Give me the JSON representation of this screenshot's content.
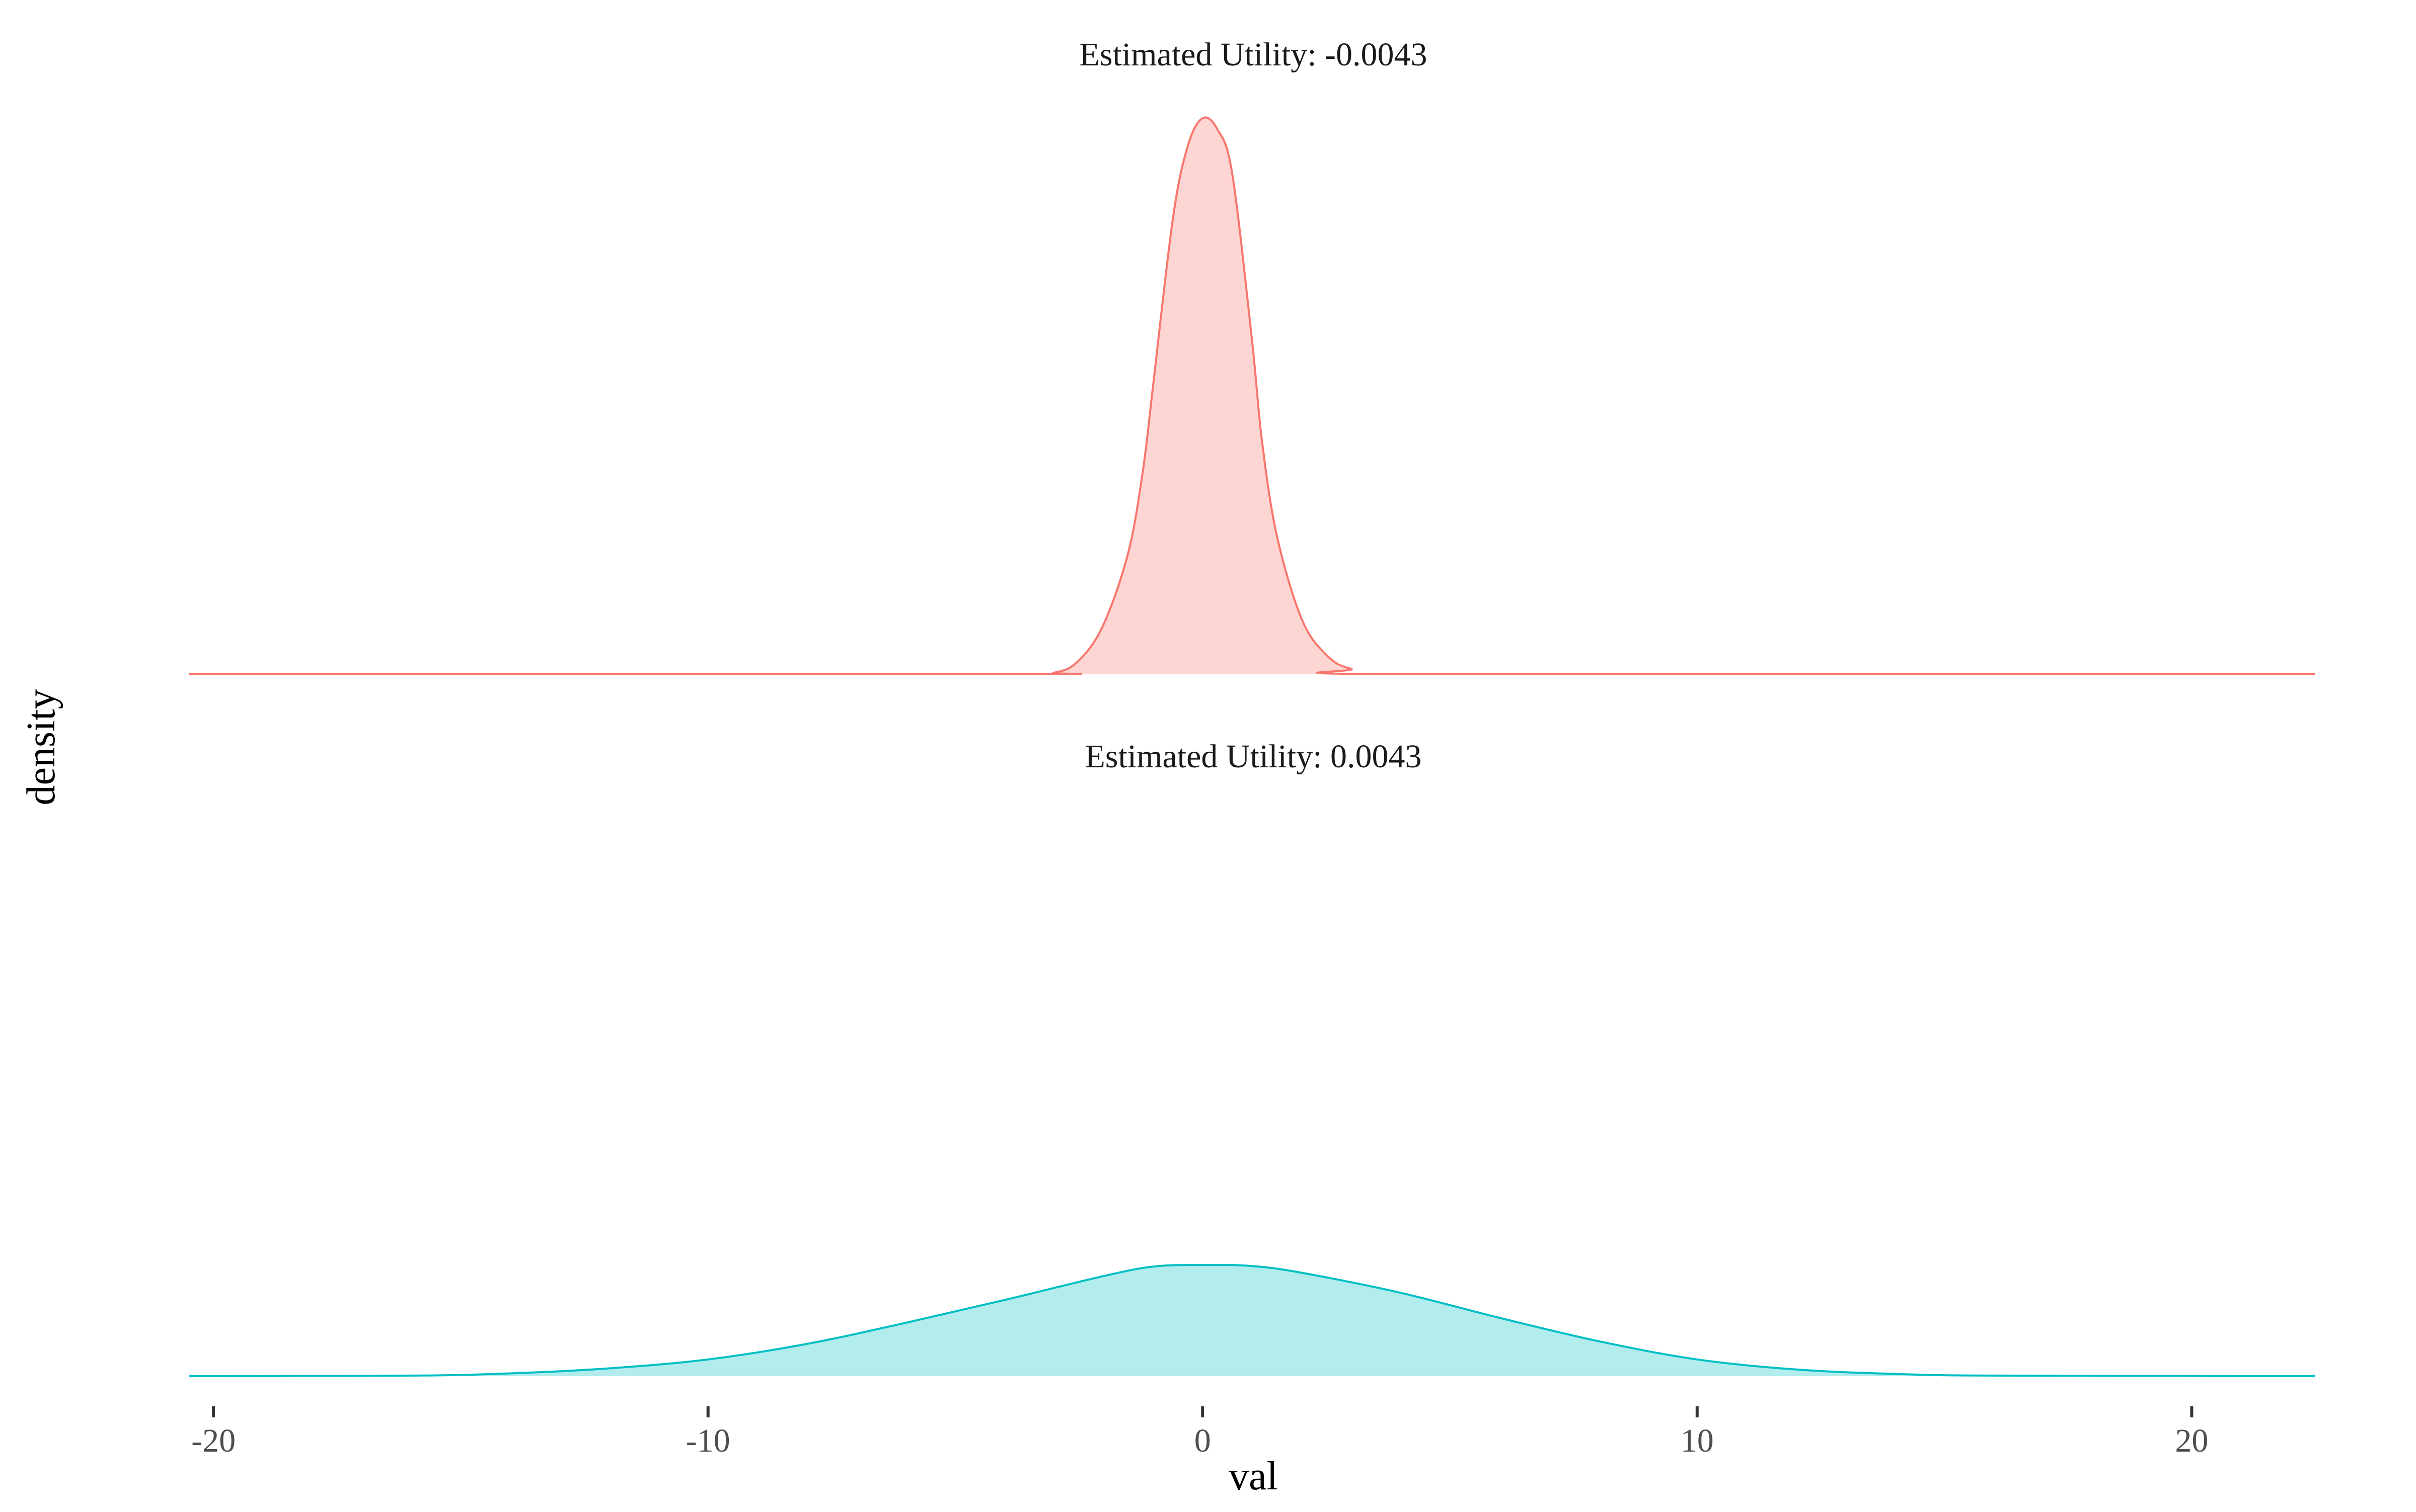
{
  "chart_data": {
    "type": "area",
    "chart_kind": "faceted density plot",
    "xlabel": "val",
    "ylabel": "density",
    "xlim": [
      -20.5,
      22.5
    ],
    "x_ticks": [
      {
        "value": -20,
        "label": "-20"
      },
      {
        "value": -10,
        "label": "-10"
      },
      {
        "value": 0,
        "label": "0"
      },
      {
        "value": 10,
        "label": "10"
      },
      {
        "value": 20,
        "label": "20"
      }
    ],
    "y_ticks_shown": false,
    "grid": false,
    "legend": "none",
    "facets": [
      {
        "title": "Estimated Utility: -0.0043",
        "line_color": "#F8766D",
        "fill_color": "#FDD5D3",
        "x": [
          -20.5,
          -4,
          -3,
          -2.5,
          -2,
          -1.5,
          -1.2,
          -1,
          -0.6,
          -0.3,
          0,
          0.3,
          0.6,
          1,
          1.2,
          1.5,
          2,
          2.5,
          3,
          4,
          22.5
        ],
        "y": [
          0,
          0,
          0.003,
          0.025,
          0.09,
          0.22,
          0.37,
          0.52,
          0.82,
          0.95,
          1.0,
          0.98,
          0.9,
          0.6,
          0.42,
          0.25,
          0.1,
          0.035,
          0.01,
          0,
          0
        ]
      },
      {
        "title": "Estimated Utility: 0.0043",
        "line_color": "#00BFC4",
        "fill_color": "#B2ECEC",
        "x": [
          -20.5,
          -16,
          -14,
          -12,
          -10,
          -8,
          -6,
          -4,
          -2,
          -1,
          0,
          1,
          2,
          4,
          6,
          8,
          10,
          12,
          14,
          16,
          22.5
        ],
        "y": [
          0,
          0.001,
          0.005,
          0.014,
          0.03,
          0.058,
          0.096,
          0.137,
          0.18,
          0.197,
          0.2,
          0.198,
          0.186,
          0.15,
          0.105,
          0.063,
          0.03,
          0.012,
          0.004,
          0.001,
          0
        ],
        "y_scale_note": "density relative to top facet peak"
      }
    ]
  }
}
